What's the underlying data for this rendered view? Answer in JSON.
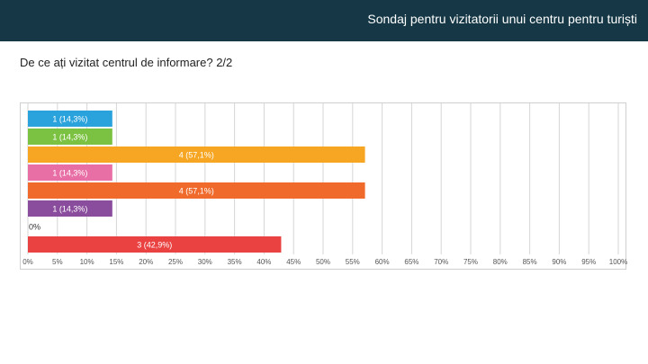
{
  "header": {
    "title": "Sondaj pentru vizitatorii unui centru pentru turiști"
  },
  "question": {
    "text": "De ce ați vizitat centrul de informare? 2/2"
  },
  "chart_data": {
    "type": "bar",
    "orientation": "horizontal",
    "title": "",
    "xlabel": "",
    "ylabel": "",
    "xlim": [
      0,
      100
    ],
    "x_ticks": [
      "0%",
      "5%",
      "10%",
      "15%",
      "20%",
      "25%",
      "30%",
      "35%",
      "40%",
      "45%",
      "50%",
      "55%",
      "60%",
      "65%",
      "70%",
      "75%",
      "80%",
      "85%",
      "90%",
      "95%",
      "100%"
    ],
    "bars": [
      {
        "count": 1,
        "percent": 14.3,
        "label": "1 (14,3%)",
        "color": "#2aa3dd"
      },
      {
        "count": 1,
        "percent": 14.3,
        "label": "1 (14,3%)",
        "color": "#7cc242"
      },
      {
        "count": 4,
        "percent": 57.1,
        "label": "4 (57,1%)",
        "color": "#f6a623"
      },
      {
        "count": 1,
        "percent": 14.3,
        "label": "1 (14,3%)",
        "color": "#e86fa5"
      },
      {
        "count": 4,
        "percent": 57.1,
        "label": "4 (57,1%)",
        "color": "#ef6a2b"
      },
      {
        "count": 1,
        "percent": 14.3,
        "label": "1 (14,3%)",
        "color": "#8a4c9c"
      },
      {
        "count": 0,
        "percent": 0,
        "label": "0%",
        "color": "#9e9e9e"
      },
      {
        "count": 3,
        "percent": 42.9,
        "label": "3 (42,9%)",
        "color": "#ea4141"
      }
    ],
    "grid": true
  },
  "colors": {
    "header_bg": "#163846",
    "grid": "#d6d6d6"
  }
}
